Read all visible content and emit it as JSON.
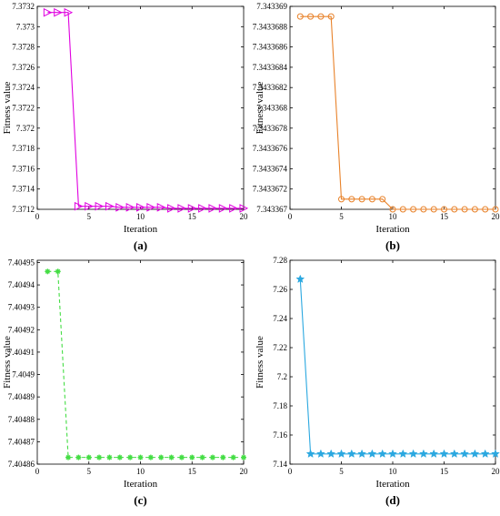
{
  "chart_data": [
    {
      "panel_label": "(a)",
      "type": "line",
      "xlabel": "Iteration",
      "ylabel": "Fitness value",
      "xlim": [
        0,
        20
      ],
      "ylim": [
        7.3712,
        7.3732
      ],
      "xticks": [
        "0",
        "5",
        "10",
        "15",
        "20"
      ],
      "yticks": [
        "7.3712",
        "7.3714",
        "7.3716",
        "7.3718",
        "7.372",
        "7.3722",
        "7.3724",
        "7.3726",
        "7.3728",
        "7.373",
        "7.3732"
      ],
      "x": [
        1,
        2,
        3,
        4,
        5,
        6,
        7,
        8,
        9,
        10,
        11,
        12,
        13,
        14,
        15,
        16,
        17,
        18,
        19,
        20
      ],
      "series": [
        {
          "values": [
            7.37314,
            7.37314,
            7.37314,
            7.37123,
            7.37123,
            7.37123,
            7.37123,
            7.37122,
            7.37122,
            7.37122,
            7.37122,
            7.37122,
            7.37121,
            7.37121,
            7.37121,
            7.37121,
            7.37121,
            7.37121,
            7.37121,
            7.37121
          ],
          "color": "#e000e0",
          "marker": "triangle-right",
          "dash": "solid"
        }
      ]
    },
    {
      "panel_label": "(b)",
      "type": "line",
      "xlabel": "Iteration",
      "ylabel": "Fitness value",
      "xlim": [
        0,
        20
      ],
      "ylim": [
        7.343367,
        7.343369
      ],
      "xticks": [
        "0",
        "5",
        "10",
        "15",
        "20"
      ],
      "yticks": [
        "7.343367",
        "7.3433672",
        "7.3433674",
        "7.3433676",
        "7.3433678",
        "7.343368",
        "7.3433682",
        "7.3433684",
        "7.3433686",
        "7.3433688",
        "7.343369"
      ],
      "x": [
        1,
        2,
        3,
        4,
        5,
        6,
        7,
        8,
        9,
        10,
        11,
        12,
        13,
        14,
        15,
        16,
        17,
        18,
        19,
        20
      ],
      "series": [
        {
          "values": [
            7.3433689,
            7.3433689,
            7.3433689,
            7.3433689,
            7.3433671,
            7.3433671,
            7.3433671,
            7.3433671,
            7.3433671,
            7.343367,
            7.343367,
            7.343367,
            7.343367,
            7.343367,
            7.343367,
            7.343367,
            7.343367,
            7.343367,
            7.343367,
            7.343367
          ],
          "color": "#e8822a",
          "marker": "circle",
          "dash": "solid"
        }
      ]
    },
    {
      "panel_label": "(c)",
      "type": "line",
      "xlabel": "Iteration",
      "ylabel": "Fitness value",
      "xlim": [
        0,
        20
      ],
      "ylim": [
        7.40486,
        7.404951
      ],
      "xticks": [
        "0",
        "5",
        "10",
        "15",
        "20"
      ],
      "yticks": [
        "7.40486",
        "7.40487",
        "7.40488",
        "7.40489",
        "7.4049",
        "7.40491",
        "7.40492",
        "7.40493",
        "7.40494",
        "7.40495"
      ],
      "x": [
        1,
        2,
        3,
        4,
        5,
        6,
        7,
        8,
        9,
        10,
        11,
        12,
        13,
        14,
        15,
        16,
        17,
        18,
        19,
        20
      ],
      "series": [
        {
          "values": [
            7.404946,
            7.404946,
            7.404863,
            7.404863,
            7.404863,
            7.404863,
            7.404863,
            7.404863,
            7.404863,
            7.404863,
            7.404863,
            7.404863,
            7.404863,
            7.404863,
            7.404863,
            7.404863,
            7.404863,
            7.404863,
            7.404863,
            7.404863
          ],
          "color": "#44dd44",
          "marker": "asterisk",
          "dash": "dashed"
        }
      ]
    },
    {
      "panel_label": "(d)",
      "type": "line",
      "xlabel": "Iteration",
      "ylabel": "Fitness value",
      "xlim": [
        0,
        20
      ],
      "ylim": [
        7.14,
        7.28
      ],
      "xticks": [
        "0",
        "5",
        "10",
        "15",
        "20"
      ],
      "yticks": [
        "7.14",
        "7.16",
        "7.18",
        "7.2",
        "7.22",
        "7.24",
        "7.26",
        "7.28"
      ],
      "x": [
        1,
        2,
        3,
        4,
        5,
        6,
        7,
        8,
        9,
        10,
        11,
        12,
        13,
        14,
        15,
        16,
        17,
        18,
        19,
        20
      ],
      "series": [
        {
          "values": [
            7.267,
            7.147,
            7.147,
            7.147,
            7.147,
            7.147,
            7.147,
            7.147,
            7.147,
            7.147,
            7.147,
            7.147,
            7.147,
            7.147,
            7.147,
            7.147,
            7.147,
            7.147,
            7.147,
            7.147
          ],
          "color": "#2ba8e0",
          "marker": "star",
          "dash": "solid"
        }
      ]
    }
  ]
}
